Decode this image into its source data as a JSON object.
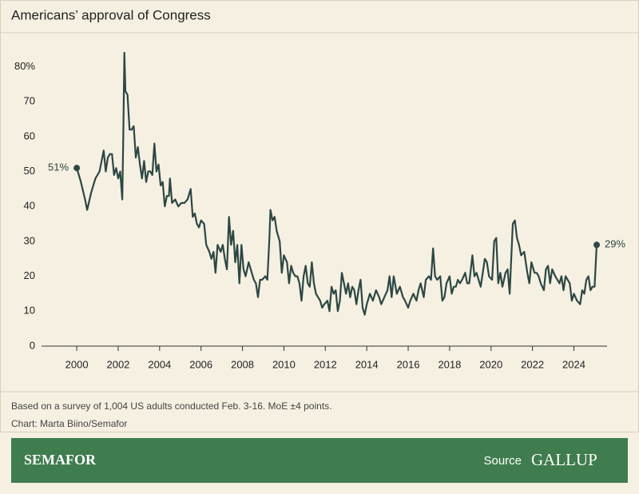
{
  "chart_data": {
    "type": "line",
    "title": "Americans’ approval of Congress",
    "x": [
      2000.0,
      2000.2,
      2000.4,
      2000.5,
      2000.7,
      2000.9,
      2001.1,
      2001.3,
      2001.4,
      2001.5,
      2001.6,
      2001.7,
      2001.8,
      2001.9,
      2002.0,
      2002.1,
      2002.2,
      2002.25,
      2002.3,
      2002.35,
      2002.45,
      2002.55,
      2002.65,
      2002.75,
      2002.85,
      2002.95,
      2003.05,
      2003.15,
      2003.25,
      2003.35,
      2003.45,
      2003.55,
      2003.65,
      2003.75,
      2003.85,
      2003.95,
      2004.05,
      2004.15,
      2004.25,
      2004.35,
      2004.45,
      2004.5,
      2004.6,
      2004.75,
      2004.9,
      2005.05,
      2005.2,
      2005.35,
      2005.5,
      2005.6,
      2005.7,
      2005.8,
      2005.9,
      2006.0,
      2006.15,
      2006.25,
      2006.4,
      2006.5,
      2006.6,
      2006.7,
      2006.8,
      2006.95,
      2007.05,
      2007.15,
      2007.25,
      2007.35,
      2007.45,
      2007.55,
      2007.65,
      2007.75,
      2007.85,
      2007.95,
      2008.05,
      2008.15,
      2008.3,
      2008.45,
      2008.55,
      2008.65,
      2008.75,
      2008.85,
      2008.95,
      2009.1,
      2009.2,
      2009.3,
      2009.35,
      2009.45,
      2009.55,
      2009.65,
      2009.75,
      2009.8,
      2009.9,
      2010.0,
      2010.15,
      2010.25,
      2010.35,
      2010.45,
      2010.55,
      2010.65,
      2010.75,
      2010.85,
      2010.95,
      2011.05,
      2011.15,
      2011.25,
      2011.35,
      2011.45,
      2011.55,
      2011.65,
      2011.75,
      2011.85,
      2011.95,
      2012.1,
      2012.2,
      2012.3,
      2012.4,
      2012.5,
      2012.6,
      2012.7,
      2012.8,
      2012.9,
      2013.0,
      2013.1,
      2013.2,
      2013.3,
      2013.4,
      2013.5,
      2013.6,
      2013.7,
      2013.8,
      2013.9,
      2014.0,
      2014.15,
      2014.3,
      2014.45,
      2014.6,
      2014.7,
      2014.85,
      2015.0,
      2015.1,
      2015.2,
      2015.3,
      2015.45,
      2015.6,
      2015.75,
      2015.85,
      2016.0,
      2016.1,
      2016.25,
      2016.4,
      2016.5,
      2016.6,
      2016.75,
      2016.85,
      2017.0,
      2017.1,
      2017.2,
      2017.3,
      2017.4,
      2017.55,
      2017.65,
      2017.75,
      2017.85,
      2018.0,
      2018.1,
      2018.2,
      2018.3,
      2018.4,
      2018.5,
      2018.6,
      2018.75,
      2018.85,
      2018.95,
      2019.1,
      2019.2,
      2019.3,
      2019.4,
      2019.5,
      2019.6,
      2019.7,
      2019.8,
      2019.9,
      2020.05,
      2020.15,
      2020.25,
      2020.35,
      2020.45,
      2020.55,
      2020.7,
      2020.8,
      2020.9,
      2021.05,
      2021.15,
      2021.25,
      2021.35,
      2021.45,
      2021.6,
      2021.75,
      2021.85,
      2021.95,
      2022.1,
      2022.2,
      2022.3,
      2022.4,
      2022.55,
      2022.65,
      2022.75,
      2022.85,
      2022.95,
      2023.1,
      2023.2,
      2023.3,
      2023.4,
      2023.5,
      2023.6,
      2023.7,
      2023.8,
      2023.9,
      2024.0,
      2024.15,
      2024.3,
      2024.4,
      2024.5,
      2024.6,
      2024.7,
      2024.8,
      2024.9,
      2025.0,
      2025.1
    ],
    "series": [
      {
        "color": "#2c4744",
        "values": [
          51,
          47,
          42,
          39,
          44,
          48,
          50,
          56,
          50,
          54,
          55,
          55,
          49,
          51,
          48,
          50,
          42,
          61,
          84,
          73,
          72,
          62,
          62,
          63,
          54,
          57,
          52,
          48,
          53,
          47,
          50,
          50,
          49,
          58,
          50,
          52,
          46,
          47,
          40,
          43,
          43,
          48,
          41,
          42,
          40,
          41,
          41,
          42,
          45,
          37,
          38,
          35,
          34,
          36,
          35,
          29,
          27,
          25,
          27,
          21,
          29,
          27,
          29,
          25,
          22,
          37,
          29,
          33,
          24,
          29,
          18,
          29,
          22,
          20,
          24,
          21,
          19,
          18,
          14,
          19,
          19,
          20,
          19,
          31,
          39,
          36,
          37,
          33,
          31,
          30,
          21,
          26,
          24,
          18,
          23,
          21,
          20,
          20,
          18,
          13,
          20,
          23,
          18,
          17,
          24,
          18,
          15,
          14,
          13,
          11,
          12,
          13,
          10,
          17,
          15,
          16,
          10,
          13,
          21,
          18,
          15,
          18,
          14,
          17,
          16,
          12,
          16,
          19,
          11,
          9,
          12,
          15,
          13,
          16,
          14,
          12,
          14,
          16,
          20,
          14,
          20,
          15,
          17,
          14,
          13,
          11,
          13,
          15,
          13,
          16,
          18,
          14,
          19,
          20,
          19,
          28,
          20,
          19,
          20,
          13,
          14,
          18,
          20,
          15,
          17,
          17,
          19,
          18,
          19,
          21,
          18,
          18,
          26,
          20,
          21,
          19,
          17,
          21,
          25,
          24,
          20,
          19,
          30,
          31,
          18,
          21,
          17,
          21,
          22,
          15,
          35,
          36,
          31,
          29,
          26,
          27,
          21,
          18,
          24,
          21,
          21,
          20,
          18,
          16,
          22,
          23,
          18,
          22,
          20,
          19,
          18,
          20,
          16,
          20,
          19,
          18,
          13,
          15,
          13,
          12,
          16,
          15,
          19,
          20,
          16,
          17,
          17,
          29
        ]
      }
    ],
    "annotations": [
      {
        "x": 2000.0,
        "y": 51,
        "label": "51%"
      },
      {
        "x": 2025.1,
        "y": 29,
        "label": "29%"
      }
    ],
    "xlim": [
      1998.3,
      2025.6
    ],
    "xticks": [
      2000,
      2002,
      2004,
      2006,
      2008,
      2010,
      2012,
      2014,
      2016,
      2018,
      2020,
      2022,
      2024
    ],
    "ylim": [
      0,
      84
    ],
    "yticks": [
      0,
      10,
      20,
      30,
      40,
      50,
      60,
      70,
      {
        "value": 80,
        "label": "80%"
      }
    ],
    "notes": [
      "Based on a survey of 1,004 US adults conducted Feb. 3-16. MoE ±4 points.",
      "Chart: Marta Biino/Semafor"
    ]
  },
  "footer": {
    "brand": "SEMAFOR",
    "source_label": "Source",
    "source": "GALLUP"
  }
}
